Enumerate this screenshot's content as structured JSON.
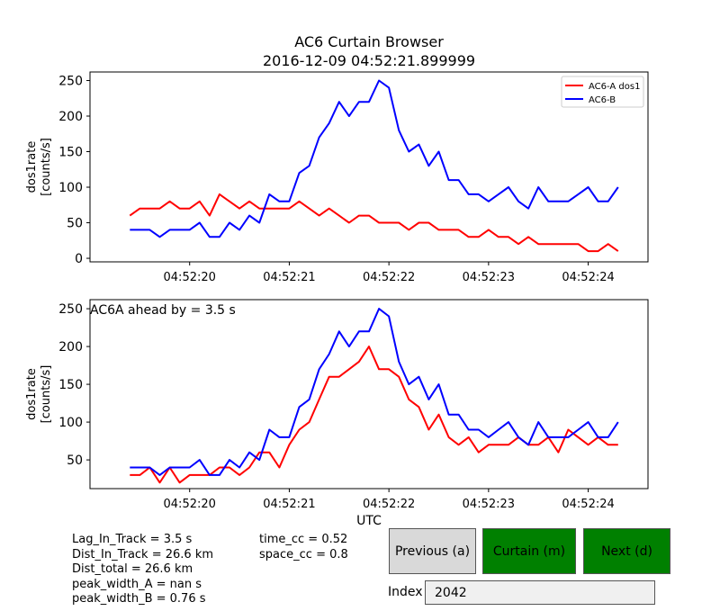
{
  "chart_data": [
    {
      "type": "line",
      "title": "AC6 Curtain Browser\n2016-12-09 04:52:21.899999",
      "ylabel": "dos1rate\n[counts/s]",
      "xlabel": "",
      "ylim": [
        -5,
        262
      ],
      "yticks": [
        0,
        50,
        100,
        150,
        200,
        250
      ],
      "xticks": [
        "04:52:20",
        "04:52:21",
        "04:52:22",
        "04:52:23",
        "04:52:24"
      ],
      "x_seconds_past_04_52": [
        19.4,
        19.5,
        19.6,
        19.7,
        19.8,
        19.9,
        20.0,
        20.1,
        20.2,
        20.3,
        20.4,
        20.5,
        20.6,
        20.7,
        20.8,
        20.9,
        21.0,
        21.1,
        21.2,
        21.3,
        21.4,
        21.5,
        21.6,
        21.7,
        21.8,
        21.9,
        22.0,
        22.1,
        22.2,
        22.3,
        22.4,
        22.5,
        22.6,
        22.7,
        22.8,
        22.9,
        23.0,
        23.1,
        23.2,
        23.3,
        23.4,
        23.5,
        23.6,
        23.7,
        23.8,
        23.9,
        24.0,
        24.1,
        24.2,
        24.3
      ],
      "legend": "upper right",
      "series": [
        {
          "name": "AC6-A dos1",
          "color": "#ff0000",
          "values": [
            60,
            70,
            70,
            70,
            80,
            70,
            70,
            80,
            60,
            90,
            80,
            70,
            80,
            70,
            70,
            70,
            70,
            80,
            70,
            60,
            70,
            60,
            50,
            60,
            60,
            50,
            50,
            50,
            40,
            50,
            50,
            40,
            40,
            40,
            30,
            30,
            40,
            30,
            30,
            20,
            30,
            20,
            20,
            20,
            20,
            20,
            10,
            10,
            20,
            10
          ]
        },
        {
          "name": "AC6-B",
          "color": "#0000ff",
          "values": [
            40,
            40,
            40,
            30,
            40,
            40,
            40,
            50,
            30,
            30,
            50,
            40,
            60,
            50,
            90,
            80,
            80,
            120,
            130,
            170,
            190,
            220,
            200,
            220,
            220,
            250,
            240,
            180,
            150,
            160,
            130,
            150,
            110,
            110,
            90,
            90,
            80,
            90,
            100,
            80,
            70,
            100,
            80,
            80,
            80,
            90,
            100,
            80,
            80,
            100
          ]
        }
      ]
    },
    {
      "type": "line",
      "title": "",
      "ylabel": "dos1rate\n[counts/s]",
      "xlabel": "UTC",
      "ylim": [
        12,
        262
      ],
      "yticks": [
        50,
        100,
        150,
        200,
        250
      ],
      "xticks": [
        "04:52:20",
        "04:52:21",
        "04:52:22",
        "04:52:23",
        "04:52:24"
      ],
      "annotation": "AC6A ahead by = 3.5 s",
      "x_seconds_past_04_52": [
        19.4,
        19.5,
        19.6,
        19.7,
        19.8,
        19.9,
        20.0,
        20.1,
        20.2,
        20.3,
        20.4,
        20.5,
        20.6,
        20.7,
        20.8,
        20.9,
        21.0,
        21.1,
        21.2,
        21.3,
        21.4,
        21.5,
        21.6,
        21.7,
        21.8,
        21.9,
        22.0,
        22.1,
        22.2,
        22.3,
        22.4,
        22.5,
        22.6,
        22.7,
        22.8,
        22.9,
        23.0,
        23.1,
        23.2,
        23.3,
        23.4,
        23.5,
        23.6,
        23.7,
        23.8,
        23.9,
        24.0,
        24.1,
        24.2,
        24.3
      ],
      "series": [
        {
          "name": "",
          "color": "#ff0000",
          "values": [
            30,
            30,
            40,
            20,
            40,
            20,
            30,
            30,
            30,
            40,
            40,
            30,
            40,
            60,
            60,
            40,
            70,
            90,
            100,
            130,
            160,
            160,
            170,
            180,
            200,
            170,
            170,
            160,
            130,
            120,
            90,
            110,
            80,
            70,
            80,
            60,
            70,
            70,
            70,
            80,
            70,
            70,
            80,
            60,
            90,
            80,
            70,
            80,
            70,
            70
          ]
        },
        {
          "name": "",
          "color": "#0000ff",
          "values": [
            40,
            40,
            40,
            30,
            40,
            40,
            40,
            50,
            30,
            30,
            50,
            40,
            60,
            50,
            90,
            80,
            80,
            120,
            130,
            170,
            190,
            220,
            200,
            220,
            220,
            250,
            240,
            180,
            150,
            160,
            130,
            150,
            110,
            110,
            90,
            90,
            80,
            90,
            100,
            80,
            70,
            100,
            80,
            80,
            80,
            90,
            100,
            80,
            80,
            100
          ]
        }
      ]
    }
  ],
  "info_left": [
    "Lag_In_Track = 3.5 s",
    "Dist_In_Track = 26.6 km",
    "Dist_total = 26.6 km",
    "peak_width_A = nan s",
    "peak_width_B = 0.76 s"
  ],
  "info_right": [
    "time_cc = 0.52",
    "space_cc = 0.8"
  ],
  "buttons": {
    "previous": "Previous (a)",
    "curtain": "Curtain (m)",
    "next": "Next (d)"
  },
  "index": {
    "label": "Index",
    "value": "2042"
  }
}
